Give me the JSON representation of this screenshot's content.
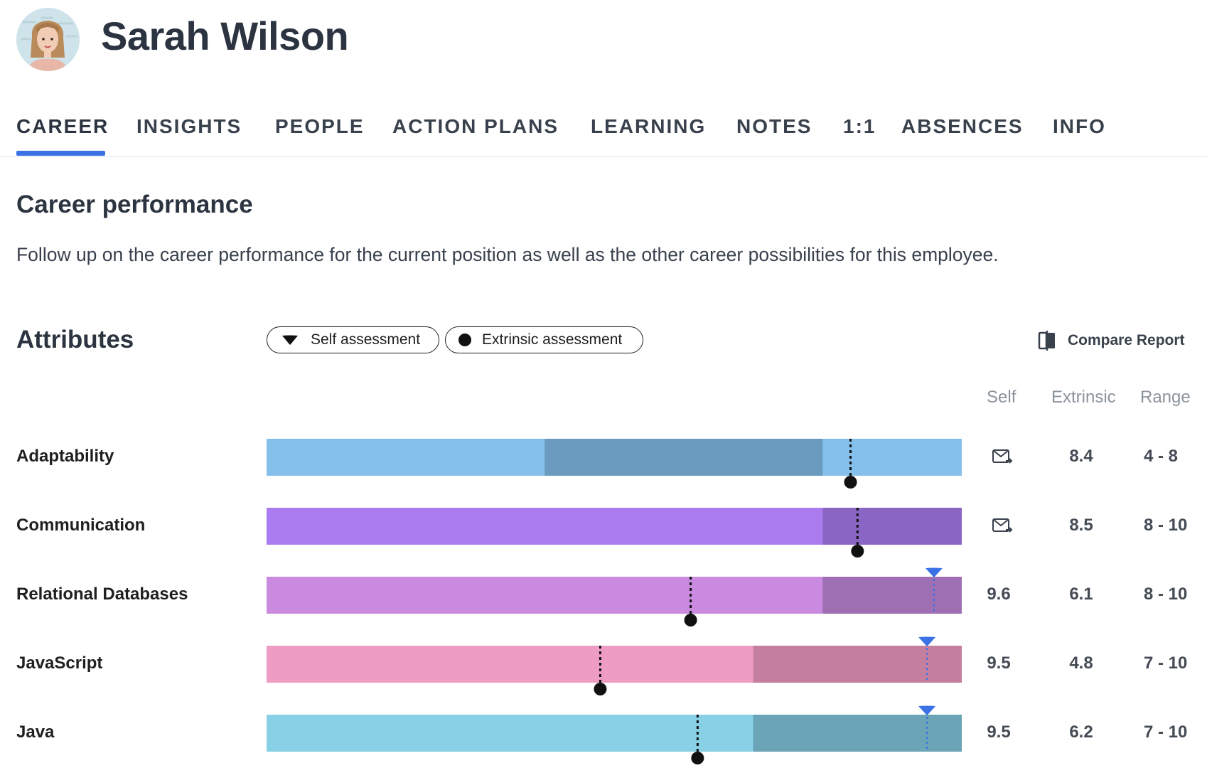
{
  "profile": {
    "name": "Sarah Wilson"
  },
  "tabs": [
    {
      "label": "CAREER",
      "active": true
    },
    {
      "label": "INSIGHTS"
    },
    {
      "label": "PEOPLE"
    },
    {
      "label": "ACTION PLANS"
    },
    {
      "label": "LEARNING"
    },
    {
      "label": "NOTES"
    },
    {
      "label": "1:1"
    },
    {
      "label": "ABSENCES"
    },
    {
      "label": "INFO"
    }
  ],
  "career": {
    "title": "Career performance",
    "description": "Follow up on the career performance for the current position as well as the other career possibilities for this employee."
  },
  "attributes": {
    "title": "Attributes",
    "legend": {
      "self": "Self assessment",
      "extrinsic": "Extrinsic assessment"
    },
    "compare_label": "Compare Report",
    "columns": {
      "self": "Self",
      "extrinsic": "Extrinsic",
      "range": "Range"
    },
    "scale": [
      0,
      10
    ],
    "rows": [
      {
        "name": "Adaptability",
        "self": null,
        "self_display": "mail-icon",
        "extrinsic": 8.4,
        "extrinsic_label": "8.4",
        "range_min": 4,
        "range_max": 8,
        "range_label": "4 - 8",
        "color_base": "#85c0ec",
        "color_range": "#6a9bbf"
      },
      {
        "name": "Communication",
        "self": null,
        "self_display": "mail-icon",
        "extrinsic": 8.5,
        "extrinsic_label": "8.5",
        "range_min": 8,
        "range_max": 10,
        "range_label": "8 - 10",
        "color_base": "#aa7cf0",
        "color_range": "#8966c4"
      },
      {
        "name": "Relational Databases",
        "self": 9.6,
        "self_label": "9.6",
        "extrinsic": 6.1,
        "extrinsic_label": "6.1",
        "range_min": 8,
        "range_max": 10,
        "range_label": "8 - 10",
        "color_base": "#c98ae0",
        "color_range": "#9f6fb3"
      },
      {
        "name": "JavaScript",
        "self": 9.5,
        "self_label": "9.5",
        "extrinsic": 4.8,
        "extrinsic_label": "4.8",
        "range_min": 7,
        "range_max": 10,
        "range_label": "7 - 10",
        "color_base": "#ef9cc4",
        "color_range": "#c57f9e"
      },
      {
        "name": "Java",
        "self": 9.5,
        "self_label": "9.5",
        "extrinsic": 6.2,
        "extrinsic_label": "6.2",
        "range_min": 7,
        "range_max": 10,
        "range_label": "7 - 10",
        "color_base": "#87d0e6",
        "color_range": "#6aa4b6"
      }
    ],
    "colors": {
      "self_marker": "#3a72e6",
      "extrinsic_marker": "#111111",
      "accent": "#3a72e6"
    }
  }
}
